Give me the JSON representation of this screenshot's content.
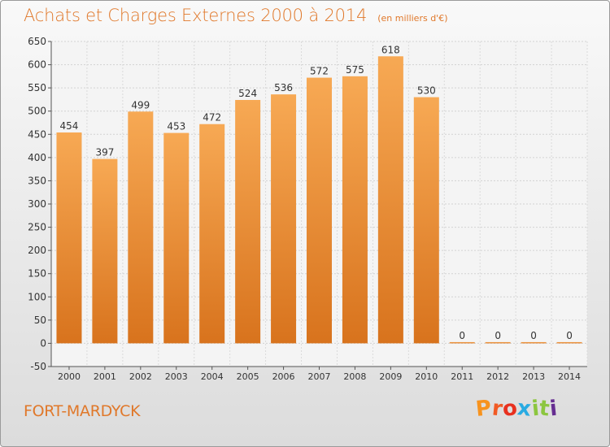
{
  "header": {
    "title": "Achats et Charges Externes 2000 à 2014",
    "subtitle": "(en milliers d'€)"
  },
  "footer": {
    "commune": "FORT-MARDYCK",
    "brand": "Proxiti"
  },
  "chart_data": {
    "type": "bar",
    "title": "Achats et Charges Externes 2000 à 2014",
    "subtitle": "(en milliers d'€)",
    "categories": [
      "2000",
      "2001",
      "2002",
      "2003",
      "2004",
      "2005",
      "2006",
      "2007",
      "2008",
      "2009",
      "2010",
      "2011",
      "2012",
      "2013",
      "2014"
    ],
    "values": [
      454,
      397,
      499,
      453,
      472,
      524,
      536,
      572,
      575,
      618,
      530,
      0,
      0,
      0,
      0
    ],
    "ylim": [
      -50,
      650
    ],
    "yticks": [
      -50,
      0,
      50,
      100,
      150,
      200,
      250,
      300,
      350,
      400,
      450,
      500,
      550,
      600,
      650
    ],
    "grid": true,
    "bar_color": "#f0913a",
    "xlabel": "",
    "ylabel": ""
  },
  "colors": {
    "accent": "#e0782a",
    "bar_top": "#f7a954",
    "bar_bottom": "#d8731d"
  }
}
